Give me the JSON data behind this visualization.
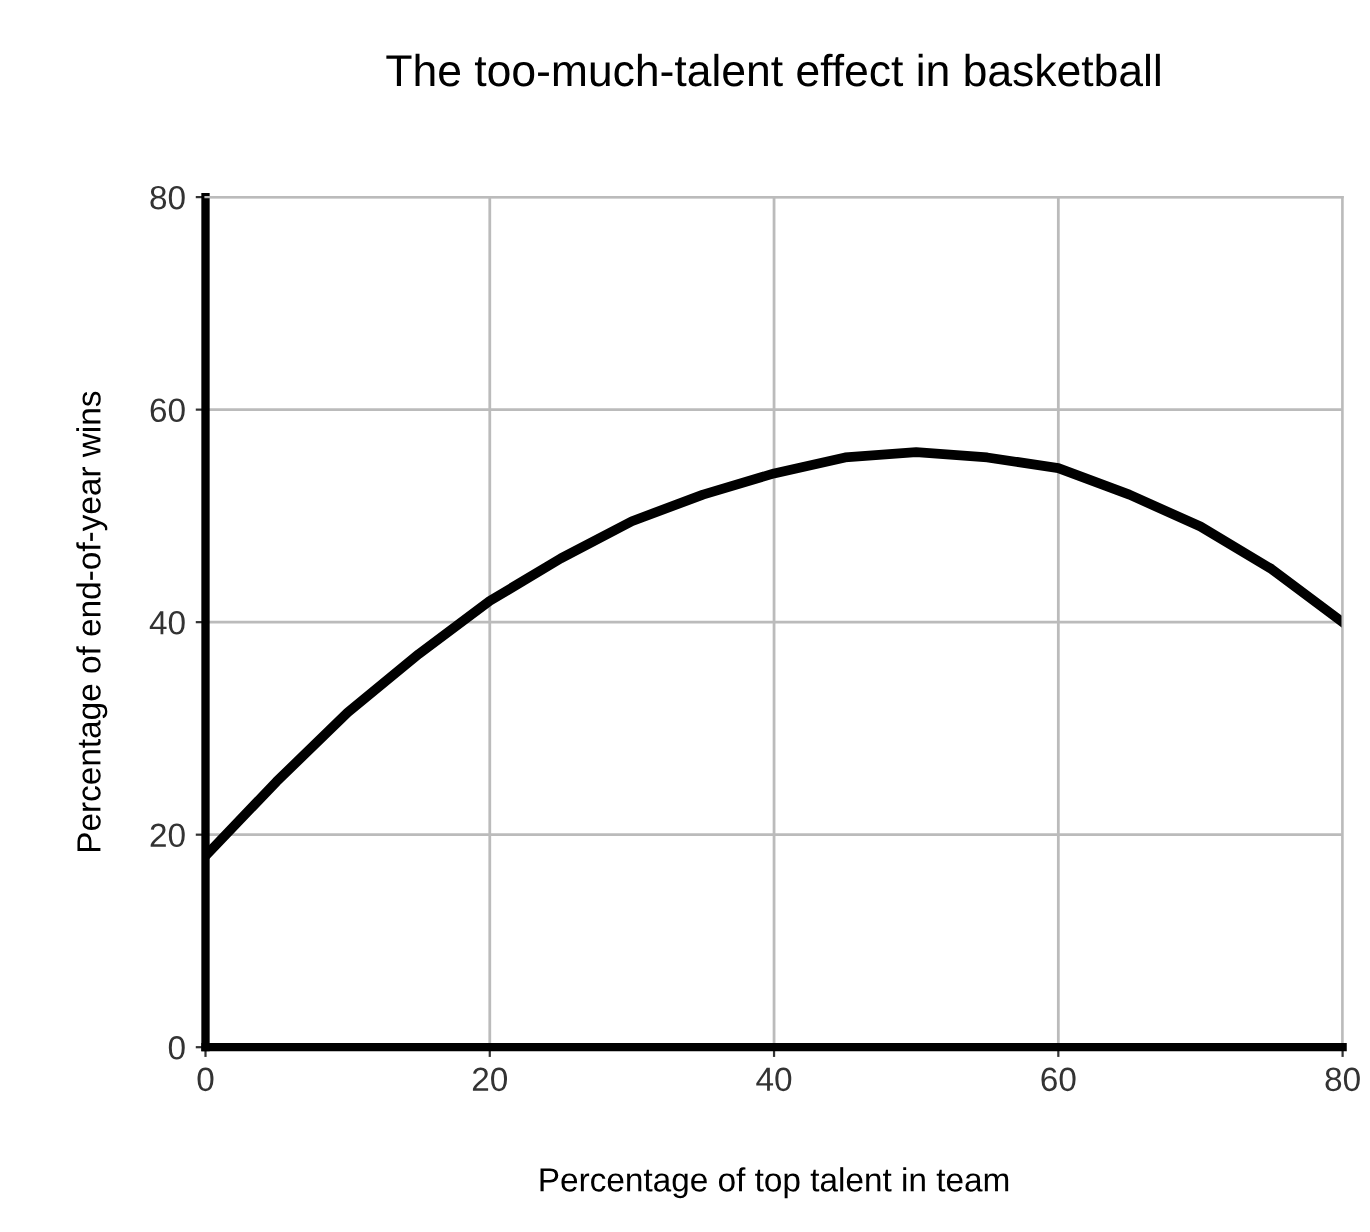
{
  "chart_data": {
    "type": "line",
    "title": "The too-much-talent effect in basketball",
    "xlabel": "Percentage of top talent in team",
    "ylabel": "Percentage of end-of-year wins",
    "x": [
      0,
      5,
      10,
      15,
      20,
      25,
      30,
      35,
      40,
      45,
      50,
      55,
      60,
      65,
      70,
      75,
      80
    ],
    "series": [
      {
        "color": "#000000",
        "values": [
          18,
          25,
          31.5,
          37,
          42,
          46,
          49.5,
          52,
          54,
          55.5,
          56,
          55.5,
          54.5,
          52,
          49,
          45,
          40
        ]
      }
    ],
    "xlim": [
      0,
      80
    ],
    "ylim": [
      0,
      80
    ],
    "xticks": [
      0,
      20,
      40,
      60,
      80
    ],
    "yticks": [
      0,
      20,
      40,
      60,
      80
    ],
    "grid": true,
    "marker": "none",
    "line_style": "solid"
  }
}
